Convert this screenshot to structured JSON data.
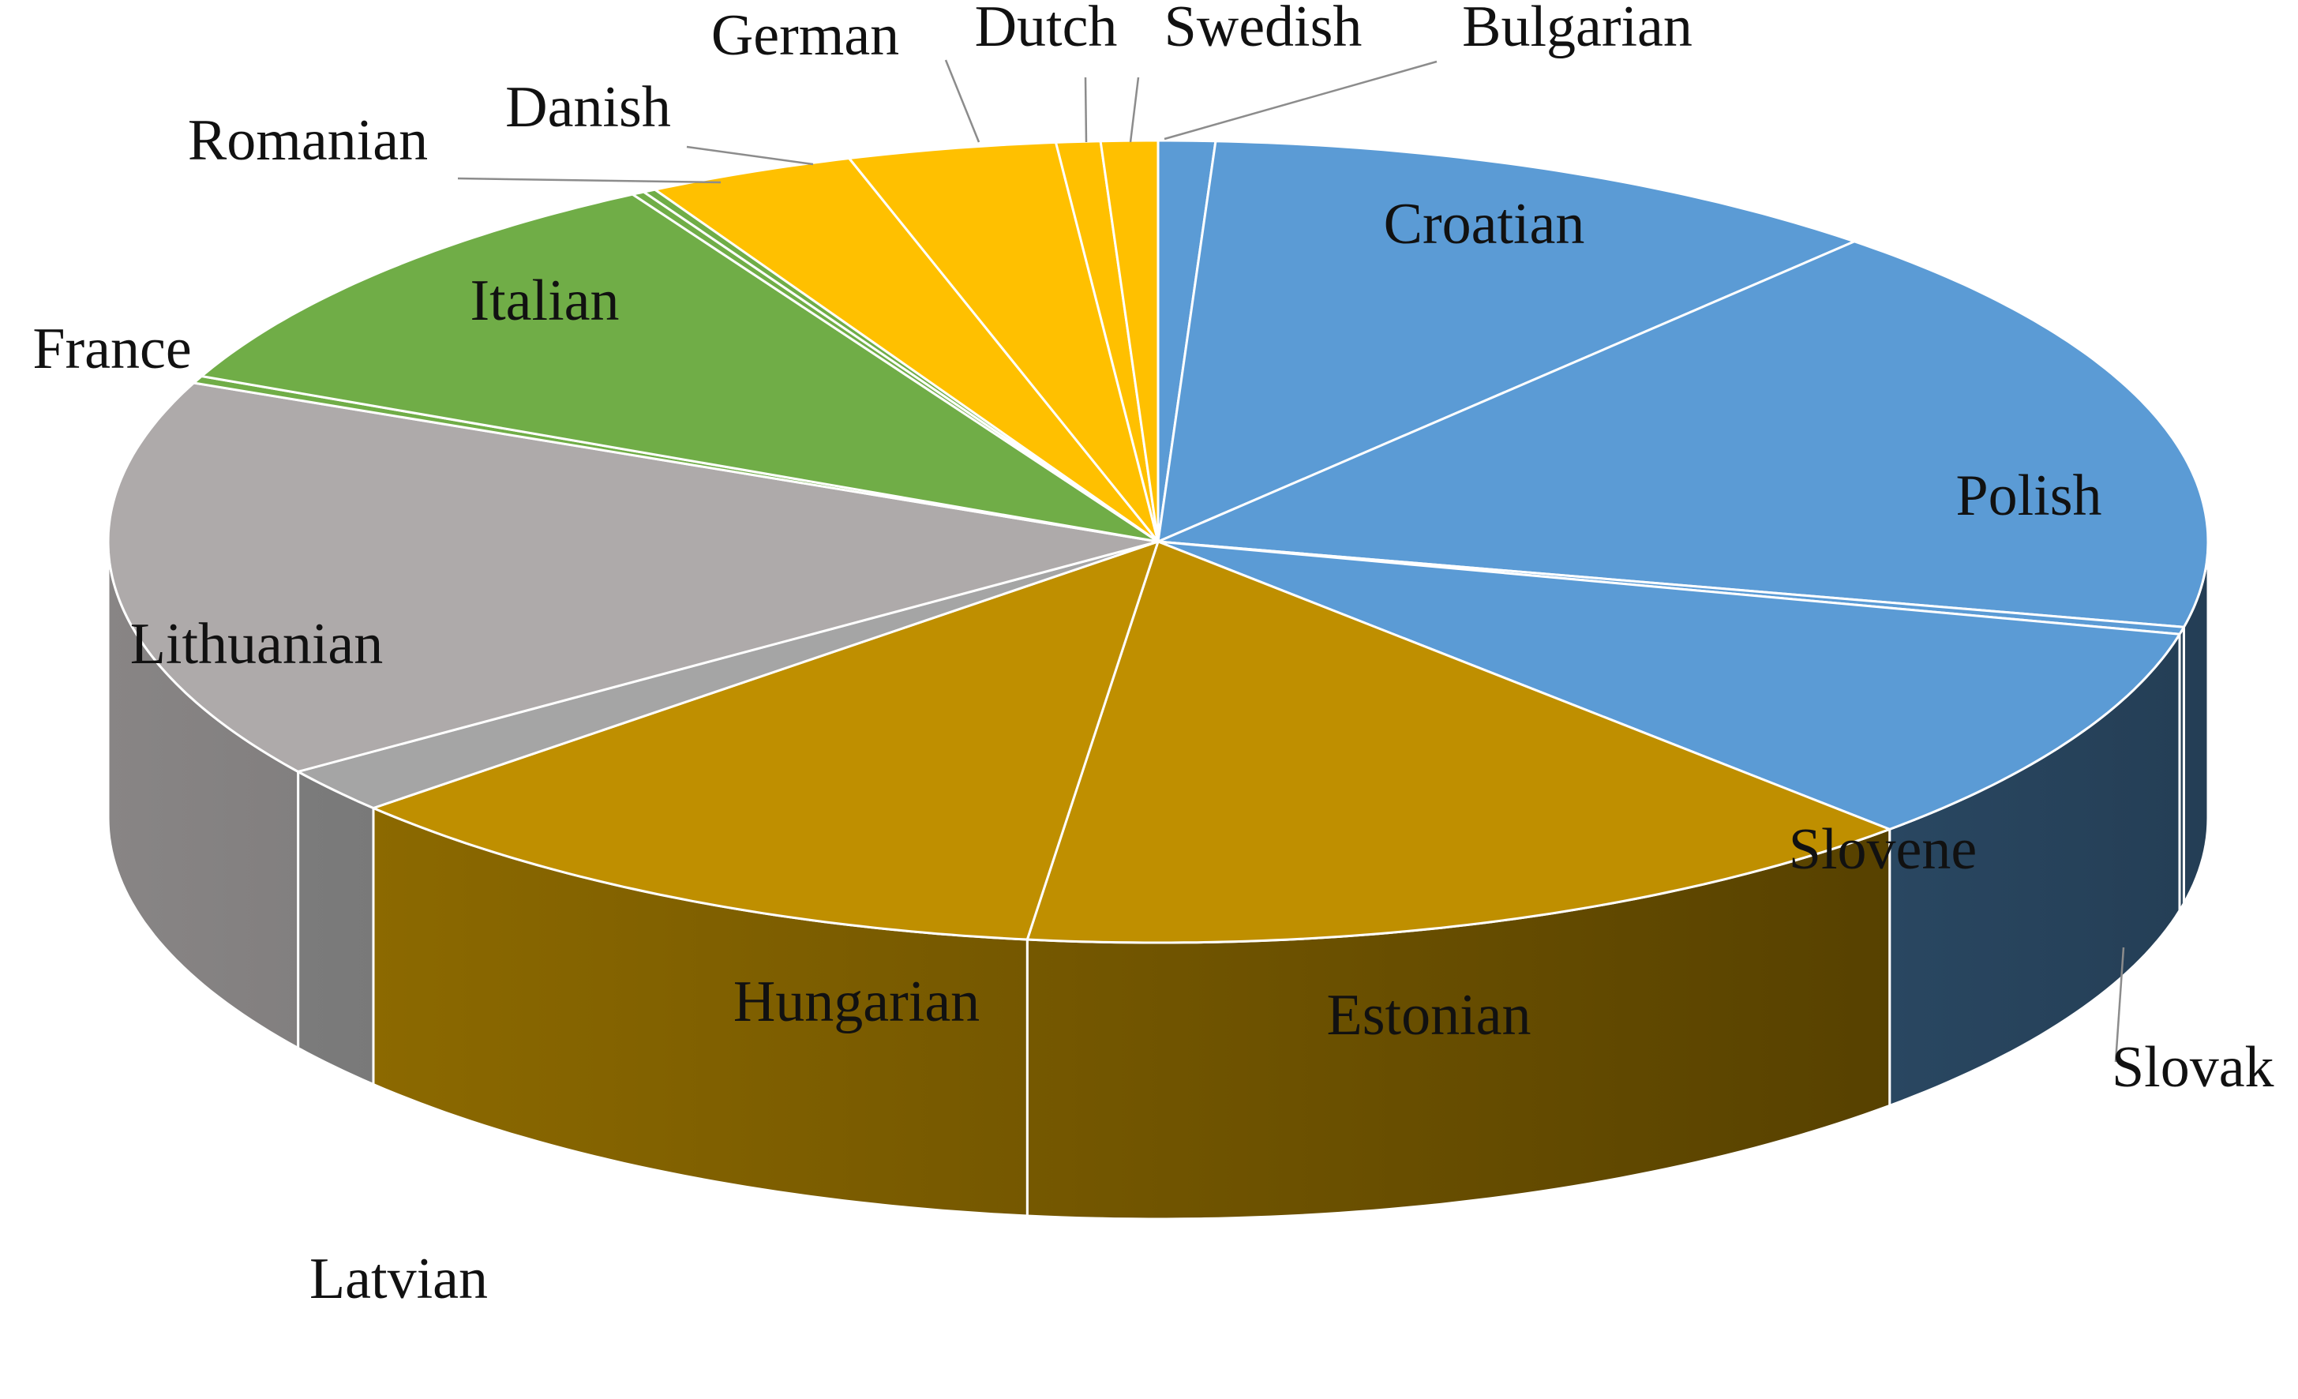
{
  "chart_data": {
    "type": "pie",
    "title": "",
    "series": [
      {
        "values": [
          0.9,
          11.0,
          17.4,
          0.3,
          9.3,
          14.7,
          11.8,
          1.9,
          16.7,
          0.3,
          10.2,
          0.2,
          0.2,
          3.3,
          3.3,
          0.7,
          0.9
        ],
        "labels": [
          "Bulgarian",
          "Croatian",
          "Polish",
          "Slovak",
          "Slovene",
          "Estonian",
          "Hungarian",
          "Latvian",
          "Lithuanian",
          "France",
          "Italian",
          "",
          "Romanian",
          "Danish",
          "German",
          "Dutch",
          "Swedish"
        ]
      }
    ],
    "colors": {
      "Bulgarian": "#5b9bd5",
      "Croatian": "#5b9bd5",
      "Polish": "#5b9bd5",
      "Slovak": "#5b9bd5",
      "Slovene": "#5b9bd5",
      "Estonian": "#bf8f00",
      "Hungarian": "#bf8f00",
      "Latvian": "#a5a5a5",
      "Lithuanian": "#aeaaaa",
      "France": "#70ad47",
      "Italian": "#70ad47",
      "Romanian": "#70ad47",
      "Danish": "#ffc000",
      "German": "#ffc000",
      "Dutch": "#ffc000",
      "Swedish": "#ffc000",
      "unlabeled": "#70ad47"
    },
    "three_d": true,
    "start": "top, clockwise",
    "legend": "none"
  }
}
